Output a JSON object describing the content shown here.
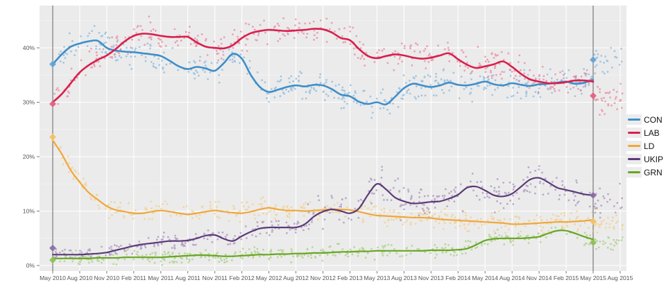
{
  "chart_data": {
    "type": "scatter",
    "subtype": "poll-scatter-with-smoothed-trend-lines",
    "title": "",
    "xlabel": "",
    "ylabel": "",
    "grid": "on",
    "legend_position": "right-middle",
    "x_axis": {
      "tick_labels": [
        "May 2010",
        "Aug 2010",
        "Nov 2010",
        "Feb 2011",
        "May 2011",
        "Aug 2011",
        "Nov 2011",
        "Feb 2012",
        "May 2012",
        "Aug 2012",
        "Nov 2012",
        "Feb 2013",
        "May 2013",
        "Aug 2013",
        "Nov 2013",
        "Feb 2014",
        "May 2014",
        "Aug 2014",
        "Nov 2014",
        "Feb 2015",
        "May 2015",
        "Aug 2015"
      ],
      "tick_month_index": [
        0,
        3,
        6,
        9,
        12,
        15,
        18,
        21,
        24,
        27,
        30,
        33,
        36,
        39,
        42,
        45,
        48,
        51,
        54,
        57,
        60,
        63
      ],
      "start_month_label": "May 2010",
      "end_month_label": "Aug 2015"
    },
    "y_axis": {
      "tick_labels": [
        "0%",
        "10%",
        "20%",
        "30%",
        "40%"
      ],
      "tick_values": [
        0,
        10,
        20,
        30,
        40
      ],
      "minor_tick_values": [
        5,
        15,
        25,
        35,
        45
      ],
      "ylim": [
        -1.0,
        47.8
      ]
    },
    "election_date_lines": [
      {
        "label": "May 2010",
        "month": 0
      },
      {
        "label": "May 2015",
        "month": 60
      }
    ],
    "series": [
      {
        "name": "CON",
        "color": "#3e8ec9",
        "scatter_color": "#5fa4d8",
        "scatter_spread": 1.9,
        "post_election_level": 37.6,
        "monthly_values": [
          37.0,
          38.8,
          40.2,
          40.8,
          41.2,
          41.3,
          40.0,
          39.5,
          39.3,
          39.2,
          39.0,
          38.8,
          38.5,
          37.6,
          36.6,
          36.1,
          36.5,
          36.2,
          35.8,
          37.2,
          38.9,
          38.0,
          35.0,
          32.8,
          31.9,
          32.3,
          32.8,
          33.1,
          32.9,
          33.2,
          33.1,
          32.4,
          31.4,
          31.1,
          30.1,
          29.7,
          30.0,
          29.6,
          31.0,
          32.6,
          33.4,
          33.1,
          32.8,
          33.1,
          33.6,
          33.2,
          33.1,
          33.4,
          33.8,
          33.3,
          33.1,
          33.5,
          33.2,
          33.0,
          33.3,
          33.4,
          33.6,
          33.8,
          33.4,
          33.6,
          34.1
        ]
      },
      {
        "name": "LAB",
        "color": "#d91f4d",
        "scatter_color": "#e75c7e",
        "scatter_spread": 1.9,
        "post_election_level": 30.6,
        "monthly_values": [
          30.0,
          31.5,
          33.5,
          35.5,
          36.8,
          37.8,
          38.6,
          39.8,
          41.2,
          42.2,
          42.6,
          42.5,
          42.2,
          42.0,
          42.0,
          42.0,
          41.0,
          40.2,
          40.0,
          39.9,
          40.5,
          41.8,
          42.7,
          43.1,
          43.3,
          43.2,
          43.1,
          43.2,
          43.3,
          43.5,
          43.4,
          42.8,
          41.8,
          41.4,
          39.8,
          38.5,
          38.1,
          38.5,
          38.8,
          38.6,
          38.2,
          38.0,
          38.2,
          38.6,
          39.0,
          37.9,
          36.9,
          36.3,
          36.6,
          37.0,
          37.5,
          36.5,
          35.2,
          34.2,
          33.8,
          33.5,
          33.5,
          33.7,
          34.0,
          34.0,
          33.8
        ]
      },
      {
        "name": "LD",
        "color": "#f0a73a",
        "scatter_color": "#f6c162",
        "scatter_spread": 1.4,
        "post_election_level": 7.8,
        "monthly_values": [
          23.0,
          20.5,
          17.5,
          15.3,
          13.4,
          12.1,
          10.9,
          10.2,
          9.9,
          9.6,
          9.6,
          9.9,
          10.1,
          9.9,
          9.6,
          9.4,
          9.6,
          9.9,
          10.1,
          9.9,
          9.7,
          9.6,
          9.9,
          10.3,
          10.6,
          10.3,
          10.1,
          10.1,
          10.0,
          10.1,
          10.2,
          10.3,
          10.3,
          10.2,
          9.9,
          9.5,
          9.2,
          9.1,
          9.0,
          8.9,
          8.8,
          8.8,
          8.7,
          8.5,
          8.4,
          8.3,
          8.2,
          8.1,
          8.0,
          7.9,
          7.8,
          7.6,
          7.6,
          7.7,
          7.8,
          7.9,
          8.0,
          8.0,
          8.1,
          8.2,
          8.4
        ]
      },
      {
        "name": "UKIP",
        "color": "#5b3a78",
        "scatter_color": "#8a6ba5",
        "scatter_spread": 1.0,
        "scatter_spread_late": 2.3,
        "post_election_level": 11.3,
        "monthly_values": [
          2.0,
          2.0,
          2.0,
          2.0,
          2.1,
          2.2,
          2.4,
          2.8,
          3.2,
          3.6,
          3.9,
          4.1,
          4.3,
          4.5,
          4.5,
          4.6,
          5.0,
          5.5,
          5.6,
          4.9,
          4.5,
          5.4,
          6.2,
          6.8,
          7.0,
          7.0,
          7.0,
          7.0,
          7.6,
          9.0,
          9.9,
          10.3,
          10.0,
          9.6,
          10.5,
          13.0,
          15.0,
          14.0,
          12.5,
          11.8,
          11.4,
          11.5,
          11.7,
          11.8,
          12.3,
          13.0,
          14.3,
          14.5,
          13.8,
          12.9,
          12.7,
          13.2,
          14.5,
          15.8,
          16.1,
          15.3,
          14.3,
          13.9,
          13.5,
          13.1,
          12.9
        ]
      },
      {
        "name": "GRN",
        "color": "#67a622",
        "scatter_color": "#8cc152",
        "scatter_spread": 0.9,
        "post_election_level": 4.2,
        "monthly_values": [
          1.3,
          1.3,
          1.3,
          1.3,
          1.3,
          1.4,
          1.4,
          1.4,
          1.5,
          1.5,
          1.5,
          1.5,
          1.5,
          1.6,
          1.7,
          1.8,
          1.9,
          1.9,
          1.8,
          1.7,
          1.7,
          1.8,
          1.9,
          2.0,
          2.0,
          2.1,
          2.1,
          2.2,
          2.2,
          2.3,
          2.3,
          2.4,
          2.5,
          2.5,
          2.6,
          2.6,
          2.7,
          2.7,
          2.7,
          2.7,
          2.7,
          2.7,
          2.8,
          2.8,
          2.8,
          2.9,
          3.1,
          3.8,
          4.6,
          4.9,
          5.0,
          5.0,
          5.0,
          5.1,
          5.3,
          5.9,
          6.4,
          6.4,
          5.9,
          5.3,
          4.8
        ]
      }
    ],
    "election_result_diamonds": [
      {
        "election": "May 2010",
        "month": 0,
        "results": [
          {
            "party": "CON",
            "value": 37.0
          },
          {
            "party": "LAB",
            "value": 29.7
          },
          {
            "party": "LD",
            "value": 23.6
          },
          {
            "party": "UKIP",
            "value": 3.2
          },
          {
            "party": "GRN",
            "value": 1.0
          }
        ]
      },
      {
        "election": "May 2015",
        "month": 60,
        "results": [
          {
            "party": "CON",
            "value": 37.8
          },
          {
            "party": "LAB",
            "value": 31.2
          },
          {
            "party": "LD",
            "value": 8.1
          },
          {
            "party": "UKIP",
            "value": 12.9
          },
          {
            "party": "GRN",
            "value": 4.2
          }
        ]
      }
    ],
    "legend_entries": [
      "CON",
      "LAB",
      "LD",
      "UKIP",
      "GRN"
    ]
  },
  "style_colors": {
    "panel_background": "#ebebeb",
    "major_gridline": "#ffffff",
    "minor_gridline": "#f3f3f3",
    "election_line": "#606060",
    "axis_text": "#555555",
    "legend_key_background": "#ececec"
  },
  "layout_note": "poll scatter points are procedurally jittered around the smoothed monthly trend values; scatter continues past the May 2015 election line at post_election_level"
}
